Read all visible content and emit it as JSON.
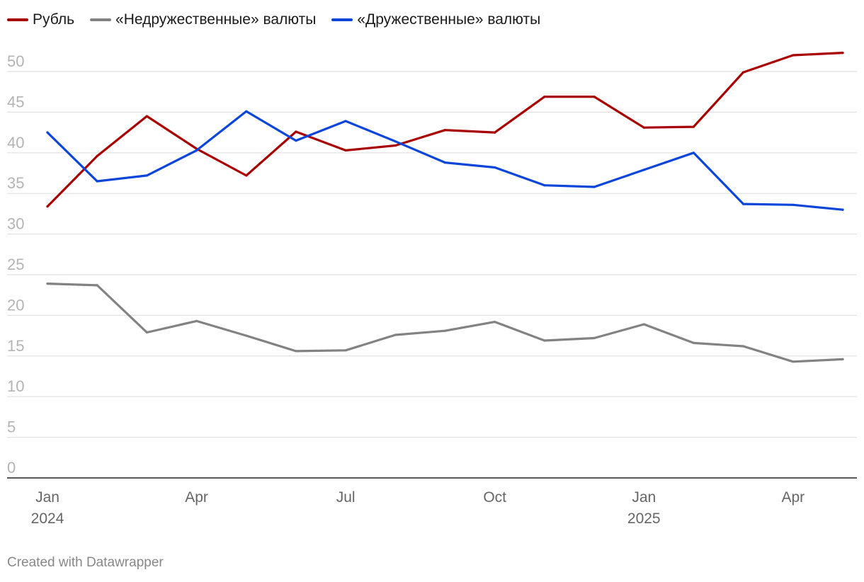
{
  "chart_data": {
    "type": "line",
    "x": [
      "2024-01",
      "2024-02",
      "2024-03",
      "2024-04",
      "2024-05",
      "2024-06",
      "2024-07",
      "2024-08",
      "2024-09",
      "2024-10",
      "2024-11",
      "2024-12",
      "2025-01",
      "2025-02",
      "2025-03",
      "2025-04",
      "2025-05"
    ],
    "series": [
      {
        "name": "Рубль",
        "color": "#a80000",
        "values": [
          33.4,
          39.6,
          44.5,
          40.5,
          37.2,
          42.6,
          40.3,
          40.9,
          42.8,
          42.5,
          46.9,
          46.9,
          43.1,
          43.2,
          49.9,
          52.0,
          52.3
        ]
      },
      {
        "name": "«Недружественные» валюты",
        "color": "#828282",
        "values": [
          23.9,
          23.7,
          17.9,
          19.3,
          17.5,
          15.6,
          15.7,
          17.6,
          18.1,
          19.2,
          16.9,
          17.2,
          18.9,
          16.6,
          16.2,
          14.3,
          14.6
        ]
      },
      {
        "name": "«Дружественные» валюты",
        "color": "#0b45d9",
        "values": [
          42.5,
          36.5,
          37.2,
          40.3,
          45.1,
          41.5,
          43.9,
          41.4,
          38.8,
          38.2,
          36.0,
          35.8,
          37.9,
          40.0,
          33.7,
          33.6,
          33.0
        ]
      }
    ],
    "ylim": [
      0,
      50
    ],
    "yticks": [
      "0",
      "5",
      "10",
      "15",
      "20",
      "25",
      "30",
      "35",
      "40",
      "45",
      "50"
    ],
    "xticks": [
      {
        "label": "Jan",
        "sub": "2024",
        "index": 0
      },
      {
        "label": "Apr",
        "sub": "",
        "index": 3
      },
      {
        "label": "Jul",
        "sub": "",
        "index": 6
      },
      {
        "label": "Oct",
        "sub": "",
        "index": 9
      },
      {
        "label": "Jan",
        "sub": "2025",
        "index": 12
      },
      {
        "label": "Apr",
        "sub": "",
        "index": 15
      }
    ],
    "grid": true,
    "legend_position": "top-left"
  },
  "footer": "Created with Datawrapper"
}
